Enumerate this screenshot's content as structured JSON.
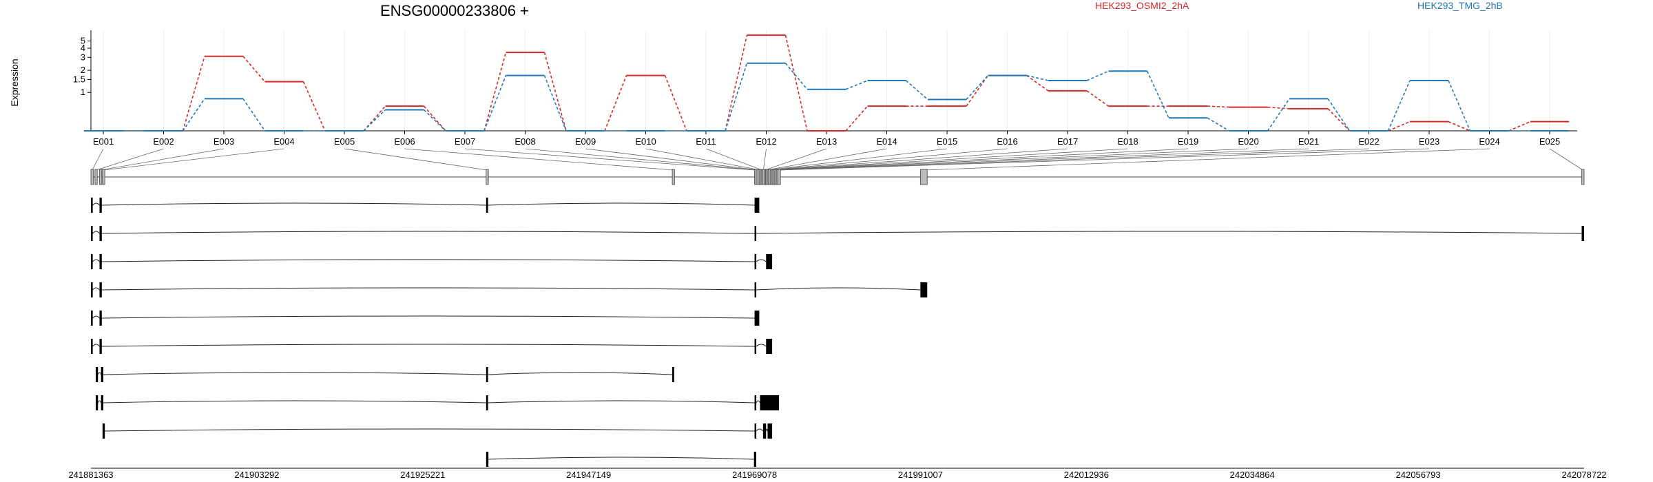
{
  "chart_data": {
    "type": "line",
    "title": "ENSG00000233806 +",
    "ylabel": "Expression",
    "xlabel": "",
    "y_scale": "log",
    "y_ticks": [
      1,
      1.5,
      2,
      3,
      4,
      5
    ],
    "categories": [
      "E001",
      "E002",
      "E003",
      "E004",
      "E005",
      "E006",
      "E007",
      "E008",
      "E009",
      "E010",
      "E011",
      "E012",
      "E013",
      "E014",
      "E015",
      "E016",
      "E017",
      "E018",
      "E019",
      "E020",
      "E021",
      "E022",
      "E023",
      "E024",
      "E025"
    ],
    "series": [
      {
        "name": "HEK293_OSMI2_2hA",
        "color": "#d62728",
        "values": [
          0.3,
          0.3,
          3.1,
          1.4,
          0.3,
          0.65,
          0.3,
          3.5,
          0.3,
          1.7,
          0.3,
          6.0,
          0.3,
          0.65,
          0.65,
          1.7,
          1.05,
          0.65,
          0.65,
          0.63,
          0.6,
          0.3,
          0.4,
          0.3,
          0.4
        ]
      },
      {
        "name": "HEK293_TMG_2hB",
        "color": "#1f77b4",
        "values": [
          0.3,
          0.3,
          0.82,
          0.3,
          0.3,
          0.58,
          0.3,
          1.7,
          0.3,
          0.3,
          0.3,
          2.5,
          1.1,
          1.45,
          0.8,
          1.7,
          1.45,
          1.95,
          0.45,
          0.3,
          0.82,
          0.3,
          1.45,
          0.3,
          0.3
        ]
      }
    ],
    "grid": "vertical",
    "legend_position": "top"
  },
  "gene_model": {
    "coord_ticks": [
      "241881363",
      "241903292",
      "241925221",
      "241947149",
      "241969078",
      "241991007",
      "242012936",
      "242034864",
      "242056793",
      "242078722"
    ],
    "axis_start": 241881363,
    "axis_end": 242078722,
    "exons": [
      {
        "id": "E001",
        "start": 241881363,
        "end": 241881700
      },
      {
        "id": "E002",
        "start": 241881900,
        "end": 241882200
      },
      {
        "id": "E003",
        "start": 241882500,
        "end": 241882800
      },
      {
        "id": "E004",
        "start": 241882900,
        "end": 241883200
      },
      {
        "id": "E005",
        "start": 241933600,
        "end": 241933900
      },
      {
        "id": "E006",
        "start": 241958200,
        "end": 241958500
      },
      {
        "id": "E007",
        "start": 241969078,
        "end": 241969300
      },
      {
        "id": "E008",
        "start": 241969300,
        "end": 241969550
      },
      {
        "id": "E009",
        "start": 241969550,
        "end": 241969750
      },
      {
        "id": "E010",
        "start": 241969750,
        "end": 241969950
      },
      {
        "id": "E011",
        "start": 241969950,
        "end": 241970150
      },
      {
        "id": "E012",
        "start": 241970150,
        "end": 241970350
      },
      {
        "id": "E013",
        "start": 241970350,
        "end": 241970550
      },
      {
        "id": "E014",
        "start": 241970550,
        "end": 241970700
      },
      {
        "id": "E015",
        "start": 241970700,
        "end": 241970850
      },
      {
        "id": "E016",
        "start": 241970850,
        "end": 241971000
      },
      {
        "id": "E017",
        "start": 241971000,
        "end": 241971200
      },
      {
        "id": "E018",
        "start": 241971200,
        "end": 241971400
      },
      {
        "id": "E019",
        "start": 241971400,
        "end": 241971550
      },
      {
        "id": "E020",
        "start": 241971550,
        "end": 241971750
      },
      {
        "id": "E021",
        "start": 241971750,
        "end": 241971950
      },
      {
        "id": "E022",
        "start": 241971950,
        "end": 241972150
      },
      {
        "id": "E023",
        "start": 241972150,
        "end": 241972500
      },
      {
        "id": "E024",
        "start": 241991000,
        "end": 241991900
      },
      {
        "id": "E025",
        "start": 242078400,
        "end": 242078722
      }
    ],
    "transcripts": [
      {
        "blocks": [
          [
            241881363,
            241881600
          ],
          [
            241882500,
            241882800
          ],
          [
            241933600,
            241933850
          ],
          [
            241969078,
            241969700
          ]
        ]
      },
      {
        "blocks": [
          [
            241881363,
            241881600
          ],
          [
            241882500,
            241882800
          ],
          [
            241969078,
            241969300
          ],
          [
            242078400,
            242078722
          ]
        ]
      },
      {
        "blocks": [
          [
            241881363,
            241881600
          ],
          [
            241882500,
            241882800
          ],
          [
            241969078,
            241969300
          ],
          [
            241970600,
            241971400
          ]
        ]
      },
      {
        "blocks": [
          [
            241881363,
            241881600
          ],
          [
            241882500,
            241882800
          ],
          [
            241969078,
            241969300
          ],
          [
            241991000,
            241991900
          ]
        ]
      },
      {
        "blocks": [
          [
            241881363,
            241881600
          ],
          [
            241882500,
            241882800
          ],
          [
            241969078,
            241969700
          ]
        ]
      },
      {
        "blocks": [
          [
            241881363,
            241881600
          ],
          [
            241882500,
            241882800
          ],
          [
            241969078,
            241969300
          ],
          [
            241970600,
            241971400
          ]
        ]
      },
      {
        "blocks": [
          [
            241882000,
            241882300
          ],
          [
            241882700,
            241883000
          ],
          [
            241933600,
            241933850
          ],
          [
            241958200,
            241958450
          ]
        ]
      },
      {
        "blocks": [
          [
            241882000,
            241882300
          ],
          [
            241882700,
            241883000
          ],
          [
            241933600,
            241933850
          ],
          [
            241969078,
            241969300
          ],
          [
            241969800,
            241972300
          ]
        ]
      },
      {
        "blocks": [
          [
            241882900,
            241883200
          ],
          [
            241969078,
            241969300
          ],
          [
            241970200,
            241970600
          ],
          [
            241970800,
            241971400
          ]
        ]
      },
      {
        "blocks": [
          [
            241933600,
            241933900
          ],
          [
            241969000,
            241969300
          ]
        ]
      }
    ]
  }
}
